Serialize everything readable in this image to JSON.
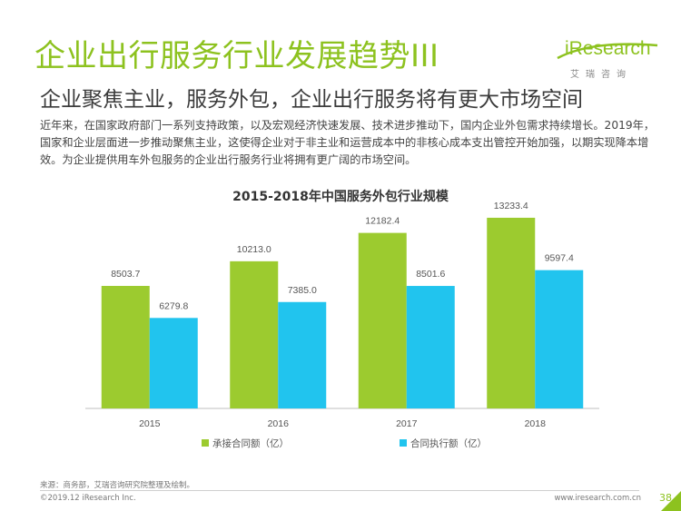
{
  "header": {
    "title": "企业出行服务行业发展趋势III",
    "subtitle": "企业聚焦主业，服务外包，企业出行服务将有更大市场空间",
    "intro": "近年来，在国家政府部门一系列支持政策，以及宏观经济快速发展、技术进步推动下，国内企业外包需求持续增长。2019年，国家和企业层面进一步推动聚焦主业，这使得企业对于非主业和运营成本中的非核心成本支出管控开始加强，以期实现降本增效。为企业提供用车外包服务的企业出行服务行业将拥有更广阔的市场空间。"
  },
  "logo": {
    "text": "iResearch",
    "sub": "艾瑞咨询"
  },
  "chart_data": {
    "type": "bar",
    "title": "2015-2018年中国服务外包行业规模",
    "categories": [
      "2015",
      "2016",
      "2017",
      "2018"
    ],
    "series": [
      {
        "name": "承接合同额（亿）",
        "values": [
          8503.7,
          10213.0,
          12182.4,
          13233.4
        ],
        "color": "#9ccb2f"
      },
      {
        "name": "合同执行额（亿）",
        "values": [
          6279.8,
          7385.0,
          8501.6,
          9597.4
        ],
        "color": "#21c4ee"
      }
    ],
    "value_labels": [
      [
        "8503.7",
        "10213.0",
        "12182.4",
        "13233.4"
      ],
      [
        "6279.8",
        "7385.0",
        "8501.6",
        "9597.4"
      ]
    ],
    "ylim": [
      0,
      16000
    ],
    "legend": "bottom",
    "grid": false
  },
  "footer": {
    "source": "来源：商务部，艾瑞咨询研究院整理及绘制。",
    "copyright": "©2019.12 iResearch Inc.",
    "url": "www.iresearch.com.cn",
    "page": "38"
  }
}
